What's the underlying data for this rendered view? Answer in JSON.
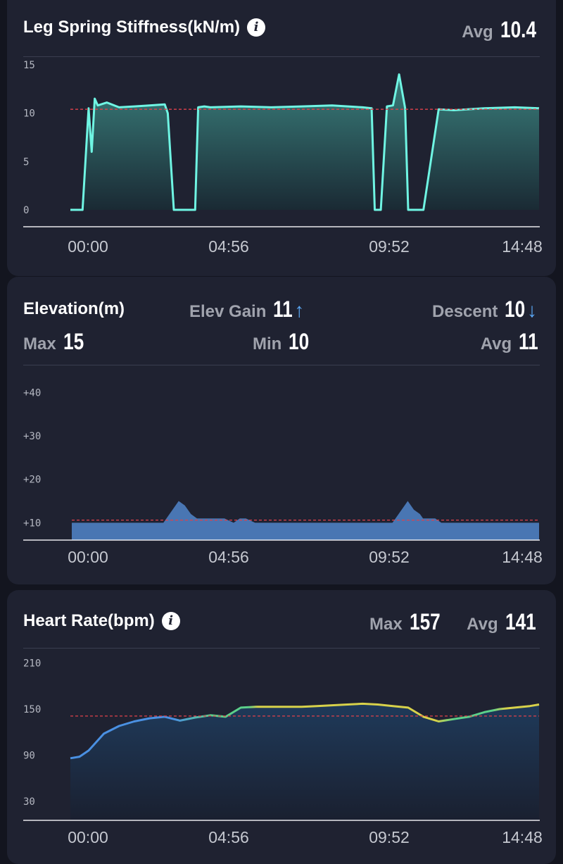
{
  "lss": {
    "title": "Leg Spring Stiffness(kN/m)",
    "info_icon": "info-icon",
    "avg_label": "Avg",
    "avg_value": "10.4"
  },
  "elevation": {
    "title": "Elevation(m)",
    "gain_label": "Elev Gain",
    "gain_value": "11",
    "gain_arrow": "↑",
    "descent_label": "Descent",
    "descent_value": "10",
    "descent_arrow": "↓",
    "max_label": "Max",
    "max_value": "15",
    "min_label": "Min",
    "min_value": "10",
    "avg_label": "Avg",
    "avg_value": "11"
  },
  "hr": {
    "title": "Heart Rate(bpm)",
    "info_icon": "info-icon",
    "max_label": "Max",
    "max_value": "157",
    "avg_label": "Avg",
    "avg_value": "141"
  },
  "chart_data": [
    {
      "type": "area",
      "id": "leg-spring-stiffness",
      "x_ticks": [
        "00:00",
        "04:56",
        "09:52",
        "14:48"
      ],
      "y_ticks": [
        "15",
        "10",
        "5",
        "0"
      ],
      "ylim": [
        0,
        15
      ],
      "xlim_min": [
        -0.6,
        14.8
      ],
      "reference_line": 10.4,
      "line_color": "#6ff5e3",
      "fill_top_color": "#3a7f7c",
      "fill_bottom_color": "#1a2a34",
      "x": [
        -0.6,
        -0.2,
        0.0,
        0.1,
        0.2,
        0.3,
        0.6,
        1.0,
        1.5,
        2.0,
        2.5,
        2.6,
        2.8,
        3.0,
        3.5,
        3.6,
        3.8,
        4.0,
        5.0,
        6.0,
        7.0,
        8.0,
        9.0,
        9.3,
        9.4,
        9.6,
        9.8,
        10.0,
        10.2,
        10.4,
        10.5,
        10.8,
        11.0,
        11.5,
        12.0,
        13.0,
        14.0,
        14.8
      ],
      "y": [
        0,
        0,
        10.5,
        6,
        11.5,
        10.8,
        11.1,
        10.6,
        10.7,
        10.8,
        10.9,
        10,
        0,
        0,
        0,
        10.6,
        10.7,
        10.6,
        10.7,
        10.6,
        10.7,
        10.8,
        10.6,
        10.5,
        0,
        0,
        10.7,
        10.8,
        14,
        10.5,
        0,
        0,
        0,
        10.4,
        10.3,
        10.5,
        10.6,
        10.5
      ]
    },
    {
      "type": "area",
      "id": "elevation",
      "x_ticks": [
        "00:00",
        "04:56",
        "09:52",
        "14:48"
      ],
      "y_ticks": [
        "+40",
        "+30",
        "+20",
        "+10"
      ],
      "ylim": [
        6,
        43
      ],
      "reference_line": 10.6,
      "fill_color": "#4976b3",
      "x": [
        -0.5,
        0.0,
        2.5,
        2.8,
        3.0,
        3.2,
        3.4,
        3.6,
        4.0,
        4.5,
        4.8,
        5.0,
        5.2,
        5.5,
        5.8,
        6.0,
        6.2,
        8.0,
        9.0,
        9.3,
        10.0,
        10.2,
        10.5,
        10.7,
        10.9,
        11.0,
        11.4,
        11.6,
        12.0,
        12.5,
        13.0,
        14.0,
        14.8
      ],
      "y": [
        10,
        10,
        10,
        13,
        15,
        14,
        12,
        11,
        11,
        11,
        10,
        11,
        11,
        10,
        10,
        10,
        10,
        10,
        10,
        10,
        10,
        12,
        15,
        13,
        12,
        11,
        11,
        10,
        10,
        10,
        10,
        10,
        10
      ]
    },
    {
      "type": "line",
      "id": "heart-rate",
      "x_ticks": [
        "00:00",
        "04:56",
        "09:52",
        "14:48"
      ],
      "y_ticks": [
        "210",
        "150",
        "90",
        "30"
      ],
      "ylim": [
        6,
        217
      ],
      "reference_line": 141,
      "colors": [
        "#4a90e2",
        "#5bd08a",
        "#d8d24a"
      ],
      "x": [
        -0.6,
        -0.3,
        0.0,
        0.5,
        1.0,
        1.5,
        2.0,
        2.5,
        3.0,
        3.5,
        4.0,
        4.5,
        5.0,
        5.5,
        6.0,
        6.5,
        7.0,
        7.5,
        8.0,
        8.5,
        9.0,
        9.5,
        10.0,
        10.5,
        11.0,
        11.5,
        12.0,
        12.5,
        13.0,
        13.5,
        14.0,
        14.5,
        14.8
      ],
      "y": [
        86,
        88,
        96,
        118,
        128,
        134,
        138,
        140,
        135,
        139,
        142,
        140,
        152,
        153,
        153,
        153,
        153,
        154,
        155,
        156,
        157,
        156,
        154,
        152,
        140,
        134,
        137,
        140,
        146,
        150,
        152,
        154,
        156
      ]
    }
  ]
}
